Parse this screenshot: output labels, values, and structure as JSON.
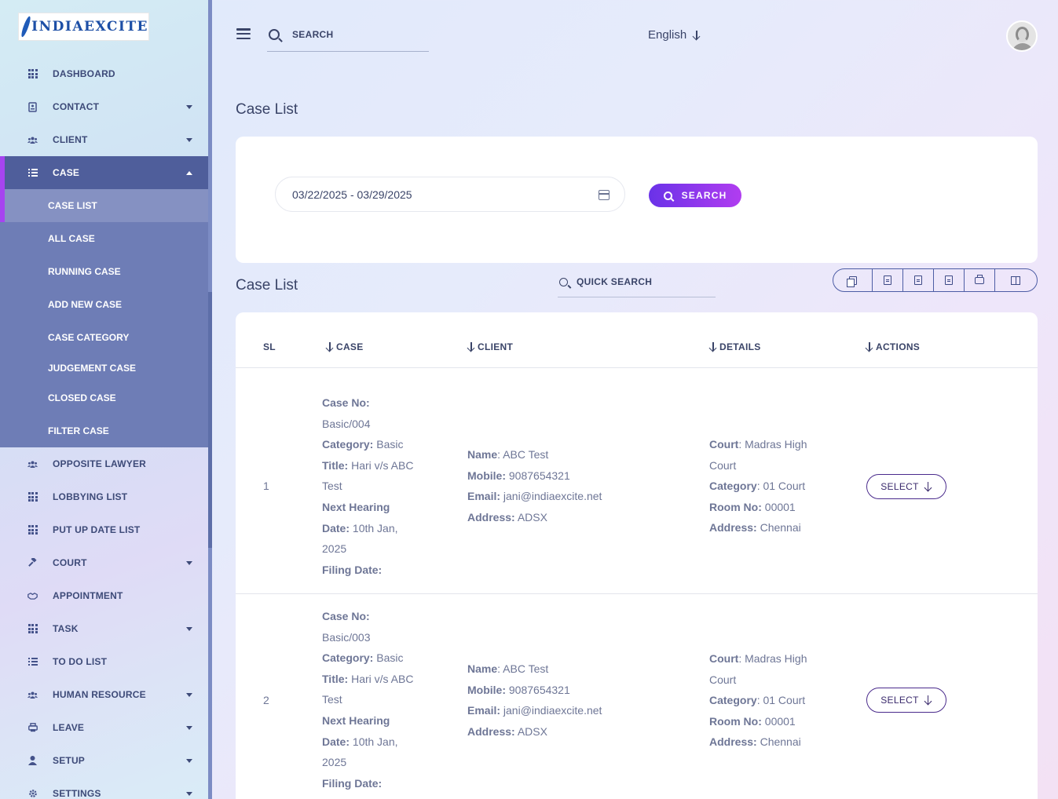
{
  "brand": {
    "logo_text": "INDIAEXCITE"
  },
  "sidebar": {
    "items_top": [
      {
        "label": "DASHBOARD",
        "icon": "grid-icon",
        "caret": false
      },
      {
        "label": "CONTACT",
        "icon": "contact-book-icon",
        "caret": true
      },
      {
        "label": "CLIENT",
        "icon": "users-icon",
        "caret": true
      }
    ],
    "active": {
      "label": "CASE",
      "icon": "list-icon"
    },
    "submenu": [
      {
        "label": "CASE LIST",
        "selected": true
      },
      {
        "label": "ALL CASE"
      },
      {
        "label": "RUNNING CASE"
      },
      {
        "label": "ADD NEW CASE"
      },
      {
        "label": "CASE CATEGORY"
      },
      {
        "label": "JUDGEMENT CASE"
      },
      {
        "label": "CLOSED CASE"
      },
      {
        "label": "FILTER CASE"
      }
    ],
    "items_bottom": [
      {
        "label": "OPPOSITE LAWYER",
        "icon": "users-icon",
        "caret": false
      },
      {
        "label": "LOBBYING LIST",
        "icon": "grid-icon",
        "caret": false
      },
      {
        "label": "PUT UP DATE LIST",
        "icon": "grid-icon",
        "caret": false
      },
      {
        "label": "COURT",
        "icon": "gavel-icon",
        "caret": true
      },
      {
        "label": "APPOINTMENT",
        "icon": "handshake-icon",
        "caret": false
      },
      {
        "label": "TASK",
        "icon": "grid-icon",
        "caret": true
      },
      {
        "label": "TO DO LIST",
        "icon": "list-icon",
        "caret": false
      },
      {
        "label": "HUMAN RESOURCE",
        "icon": "users-icon",
        "caret": true
      },
      {
        "label": "LEAVE",
        "icon": "printer-icon",
        "caret": true
      },
      {
        "label": "SETUP",
        "icon": "user-icon",
        "caret": true
      },
      {
        "label": "SETTINGS",
        "icon": "gear-icon",
        "caret": true
      }
    ]
  },
  "header": {
    "search_placeholder": "SEARCH",
    "language": "English"
  },
  "filter": {
    "title": "Case List",
    "date_range": "03/22/2025 - 03/29/2025",
    "search_label": "SEARCH"
  },
  "list": {
    "title": "Case List",
    "quick_search_placeholder": "QUICK SEARCH",
    "toolbar": [
      "copy-icon",
      "excel-icon",
      "csv-icon",
      "pdf-icon",
      "printer-icon",
      "columns-icon"
    ],
    "columns": {
      "sl": "SL",
      "case": "CASE",
      "client": "CLIENT",
      "details": "DETAILS",
      "actions": "ACTIONS"
    },
    "labels": {
      "case_no": "Case No:",
      "category": "Category:",
      "title": "Title:",
      "next_hearing": "Next Hearing",
      "date": "Date:",
      "filing_date": "Filing Date:",
      "name": "Name",
      "mobile": "Mobile:",
      "email": "Email:",
      "address": "Address:",
      "court": "Court",
      "category_d": "Category",
      "room_no": "Room No:",
      "address_d": "Address:"
    },
    "rows": [
      {
        "sl": "1",
        "case_no": "Basic/004",
        "category": "Basic",
        "title_l1": "Hari v/s ABC",
        "title_l2": "Test",
        "date_l1": "10th Jan,",
        "date_l2": "2025",
        "name": "ABC Test",
        "mobile": "9087654321",
        "email": "jani@indiaexcite.net",
        "address": "ADSX",
        "court_l1": "Madras High",
        "court_l2": "Court",
        "category_d": "01 Court",
        "room_no": "00001",
        "address_d": "Chennai",
        "action": "SELECT"
      },
      {
        "sl": "2",
        "case_no": "Basic/003",
        "category": "Basic",
        "title_l1": "Hari v/s ABC",
        "title_l2": "Test",
        "date_l1": "10th Jan,",
        "date_l2": "2025",
        "name": "ABC Test",
        "mobile": "9087654321",
        "email": "jani@indiaexcite.net",
        "address": "ADSX",
        "court_l1": "Madras High",
        "court_l2": "Court",
        "category_d": "01 Court",
        "room_no": "00001",
        "address_d": "Chennai",
        "action": "SELECT"
      }
    ]
  }
}
